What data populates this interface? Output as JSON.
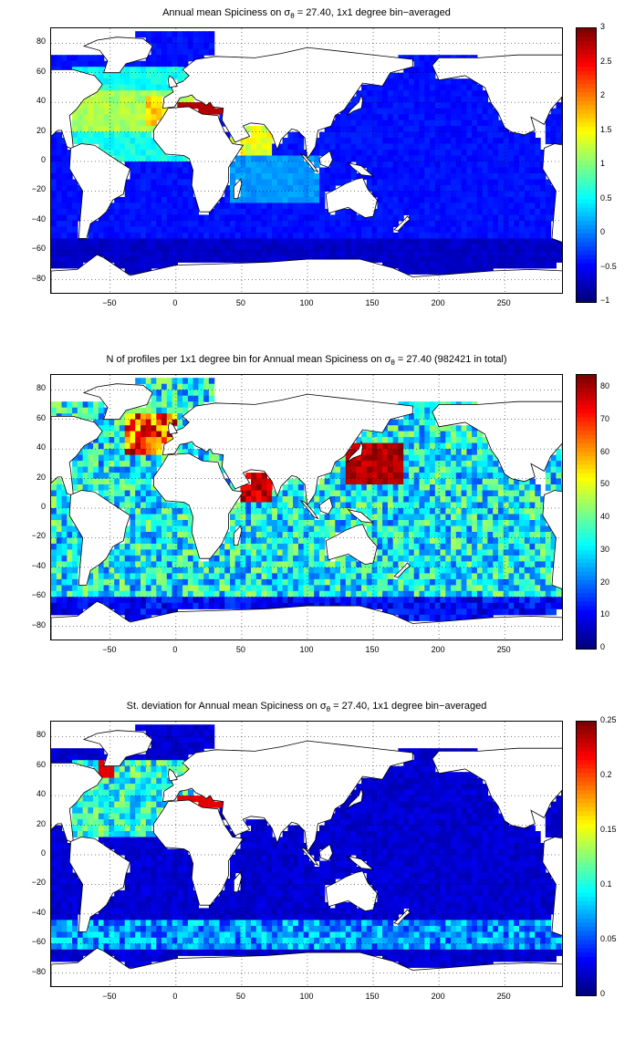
{
  "panels": [
    {
      "title": "Annual mean Spiciness on σ",
      "title_sub": "θ",
      "title_suffix": " = 27.40, 1x1 degree bin−averaged",
      "colorbar_ticks": [
        "3",
        "2.5",
        "2",
        "1.5",
        "1",
        "0.5",
        "0",
        "−0.5",
        "−1"
      ],
      "colorbar_range": [
        -1,
        3
      ],
      "x_ticks": [
        "−50",
        "0",
        "50",
        "100",
        "150",
        "200",
        "250"
      ],
      "y_ticks": [
        "80",
        "60",
        "40",
        "20",
        "0",
        "−20",
        "−40",
        "−60",
        "−80"
      ]
    },
    {
      "title": "N of profiles per 1x1 degree bin for Annual mean Spiciness on σ",
      "title_sub": "θ",
      "title_suffix": " = 27.40 (982421 in total)",
      "colorbar_ticks": [
        "80",
        "70",
        "60",
        "50",
        "40",
        "30",
        "20",
        "10",
        "0"
      ],
      "colorbar_range": [
        0,
        84
      ],
      "x_ticks": [
        "−50",
        "0",
        "50",
        "100",
        "150",
        "200",
        "250"
      ],
      "y_ticks": [
        "80",
        "60",
        "40",
        "20",
        "0",
        "−20",
        "−40",
        "−60",
        "−80"
      ]
    },
    {
      "title": "St. deviation for Annual mean Spiciness on σ",
      "title_sub": "θ",
      "title_suffix": " = 27.40, 1x1 degree bin−averaged",
      "colorbar_ticks": [
        "0.25",
        "0.2",
        "0.15",
        "0.1",
        "0.05",
        "0"
      ],
      "colorbar_range": [
        0,
        0.25
      ],
      "x_ticks": [
        "−50",
        "0",
        "50",
        "100",
        "150",
        "200",
        "250"
      ],
      "y_ticks": [
        "80",
        "60",
        "40",
        "20",
        "0",
        "−20",
        "−40",
        "−60",
        "−80"
      ]
    }
  ],
  "map_extent": {
    "lon": [
      -95,
      295
    ],
    "lat": [
      -90,
      90
    ]
  },
  "colormap": "jet",
  "ocean_colors": [
    "#1d3df0",
    "#1a4cf5",
    "#0e1c9c"
  ]
}
